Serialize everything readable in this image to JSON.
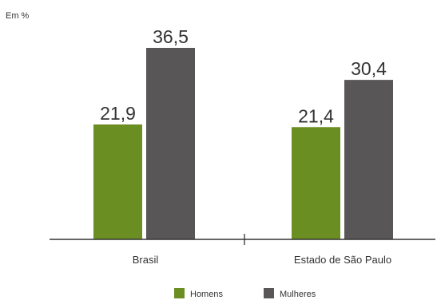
{
  "chart_data": {
    "type": "bar",
    "unit_label": "Em %",
    "categories": [
      "Brasil",
      "Estado de São Paulo"
    ],
    "series": [
      {
        "name": "Homens",
        "values": [
          21.9,
          21.4
        ],
        "labels": [
          "21,9",
          "21,4"
        ],
        "color": "#6b8e23"
      },
      {
        "name": "Mulheres",
        "values": [
          36.5,
          30.4
        ],
        "labels": [
          "36,5",
          "30,4"
        ],
        "color": "#595657"
      }
    ],
    "ylim": [
      0,
      40
    ],
    "grid": false,
    "legend_position": "bottom-center"
  }
}
